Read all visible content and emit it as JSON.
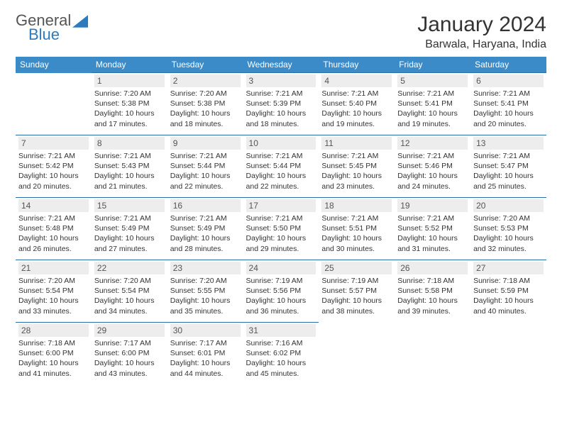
{
  "logo": {
    "text1": "General",
    "text2": "Blue"
  },
  "title": "January 2024",
  "location": "Barwala, Haryana, India",
  "colors": {
    "header_bg": "#3b8bc9",
    "row_border": "#2b6fa8",
    "daynum_bg": "#ededed"
  },
  "weekdays": [
    "Sunday",
    "Monday",
    "Tuesday",
    "Wednesday",
    "Thursday",
    "Friday",
    "Saturday"
  ],
  "weeks": [
    [
      null,
      {
        "n": "1",
        "sr": "7:20 AM",
        "ss": "5:38 PM",
        "dl": "10 hours and 17 minutes."
      },
      {
        "n": "2",
        "sr": "7:20 AM",
        "ss": "5:38 PM",
        "dl": "10 hours and 18 minutes."
      },
      {
        "n": "3",
        "sr": "7:21 AM",
        "ss": "5:39 PM",
        "dl": "10 hours and 18 minutes."
      },
      {
        "n": "4",
        "sr": "7:21 AM",
        "ss": "5:40 PM",
        "dl": "10 hours and 19 minutes."
      },
      {
        "n": "5",
        "sr": "7:21 AM",
        "ss": "5:41 PM",
        "dl": "10 hours and 19 minutes."
      },
      {
        "n": "6",
        "sr": "7:21 AM",
        "ss": "5:41 PM",
        "dl": "10 hours and 20 minutes."
      }
    ],
    [
      {
        "n": "7",
        "sr": "7:21 AM",
        "ss": "5:42 PM",
        "dl": "10 hours and 20 minutes."
      },
      {
        "n": "8",
        "sr": "7:21 AM",
        "ss": "5:43 PM",
        "dl": "10 hours and 21 minutes."
      },
      {
        "n": "9",
        "sr": "7:21 AM",
        "ss": "5:44 PM",
        "dl": "10 hours and 22 minutes."
      },
      {
        "n": "10",
        "sr": "7:21 AM",
        "ss": "5:44 PM",
        "dl": "10 hours and 22 minutes."
      },
      {
        "n": "11",
        "sr": "7:21 AM",
        "ss": "5:45 PM",
        "dl": "10 hours and 23 minutes."
      },
      {
        "n": "12",
        "sr": "7:21 AM",
        "ss": "5:46 PM",
        "dl": "10 hours and 24 minutes."
      },
      {
        "n": "13",
        "sr": "7:21 AM",
        "ss": "5:47 PM",
        "dl": "10 hours and 25 minutes."
      }
    ],
    [
      {
        "n": "14",
        "sr": "7:21 AM",
        "ss": "5:48 PM",
        "dl": "10 hours and 26 minutes."
      },
      {
        "n": "15",
        "sr": "7:21 AM",
        "ss": "5:49 PM",
        "dl": "10 hours and 27 minutes."
      },
      {
        "n": "16",
        "sr": "7:21 AM",
        "ss": "5:49 PM",
        "dl": "10 hours and 28 minutes."
      },
      {
        "n": "17",
        "sr": "7:21 AM",
        "ss": "5:50 PM",
        "dl": "10 hours and 29 minutes."
      },
      {
        "n": "18",
        "sr": "7:21 AM",
        "ss": "5:51 PM",
        "dl": "10 hours and 30 minutes."
      },
      {
        "n": "19",
        "sr": "7:21 AM",
        "ss": "5:52 PM",
        "dl": "10 hours and 31 minutes."
      },
      {
        "n": "20",
        "sr": "7:20 AM",
        "ss": "5:53 PM",
        "dl": "10 hours and 32 minutes."
      }
    ],
    [
      {
        "n": "21",
        "sr": "7:20 AM",
        "ss": "5:54 PM",
        "dl": "10 hours and 33 minutes."
      },
      {
        "n": "22",
        "sr": "7:20 AM",
        "ss": "5:54 PM",
        "dl": "10 hours and 34 minutes."
      },
      {
        "n": "23",
        "sr": "7:20 AM",
        "ss": "5:55 PM",
        "dl": "10 hours and 35 minutes."
      },
      {
        "n": "24",
        "sr": "7:19 AM",
        "ss": "5:56 PM",
        "dl": "10 hours and 36 minutes."
      },
      {
        "n": "25",
        "sr": "7:19 AM",
        "ss": "5:57 PM",
        "dl": "10 hours and 38 minutes."
      },
      {
        "n": "26",
        "sr": "7:18 AM",
        "ss": "5:58 PM",
        "dl": "10 hours and 39 minutes."
      },
      {
        "n": "27",
        "sr": "7:18 AM",
        "ss": "5:59 PM",
        "dl": "10 hours and 40 minutes."
      }
    ],
    [
      {
        "n": "28",
        "sr": "7:18 AM",
        "ss": "6:00 PM",
        "dl": "10 hours and 41 minutes."
      },
      {
        "n": "29",
        "sr": "7:17 AM",
        "ss": "6:00 PM",
        "dl": "10 hours and 43 minutes."
      },
      {
        "n": "30",
        "sr": "7:17 AM",
        "ss": "6:01 PM",
        "dl": "10 hours and 44 minutes."
      },
      {
        "n": "31",
        "sr": "7:16 AM",
        "ss": "6:02 PM",
        "dl": "10 hours and 45 minutes."
      },
      null,
      null,
      null
    ]
  ],
  "labels": {
    "sunrise": "Sunrise: ",
    "sunset": "Sunset: ",
    "daylight": "Daylight: "
  }
}
